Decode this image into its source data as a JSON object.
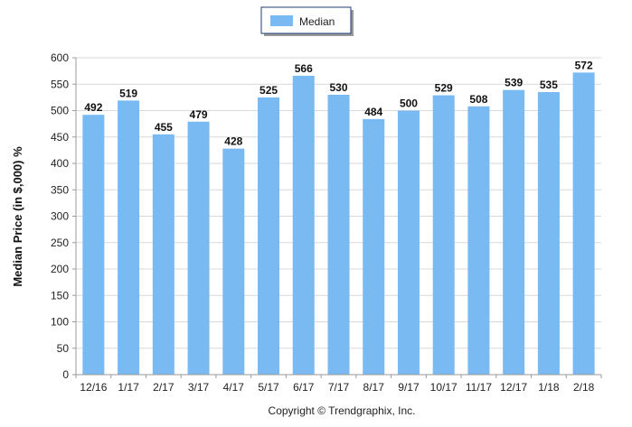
{
  "chart_data": {
    "type": "bar",
    "categories": [
      "12/16",
      "1/17",
      "2/17",
      "3/17",
      "4/17",
      "5/17",
      "6/17",
      "7/17",
      "8/17",
      "9/17",
      "10/17",
      "11/17",
      "12/17",
      "1/18",
      "2/18"
    ],
    "series": [
      {
        "name": "Median",
        "values": [
          492,
          519,
          455,
          479,
          428,
          525,
          566,
          530,
          484,
          500,
          529,
          508,
          539,
          535,
          572
        ]
      }
    ],
    "ylabel": "Median Price (in $,000) %",
    "xlabel": "",
    "ylim": [
      0,
      600
    ],
    "yticks": [
      0,
      50,
      100,
      150,
      200,
      250,
      300,
      350,
      400,
      450,
      500,
      550,
      600
    ],
    "grid": true,
    "legend_position": "top-center",
    "data_labels": true,
    "bar_color": "#7abaf3"
  },
  "footer": "Copyright © Trendgraphix, Inc."
}
